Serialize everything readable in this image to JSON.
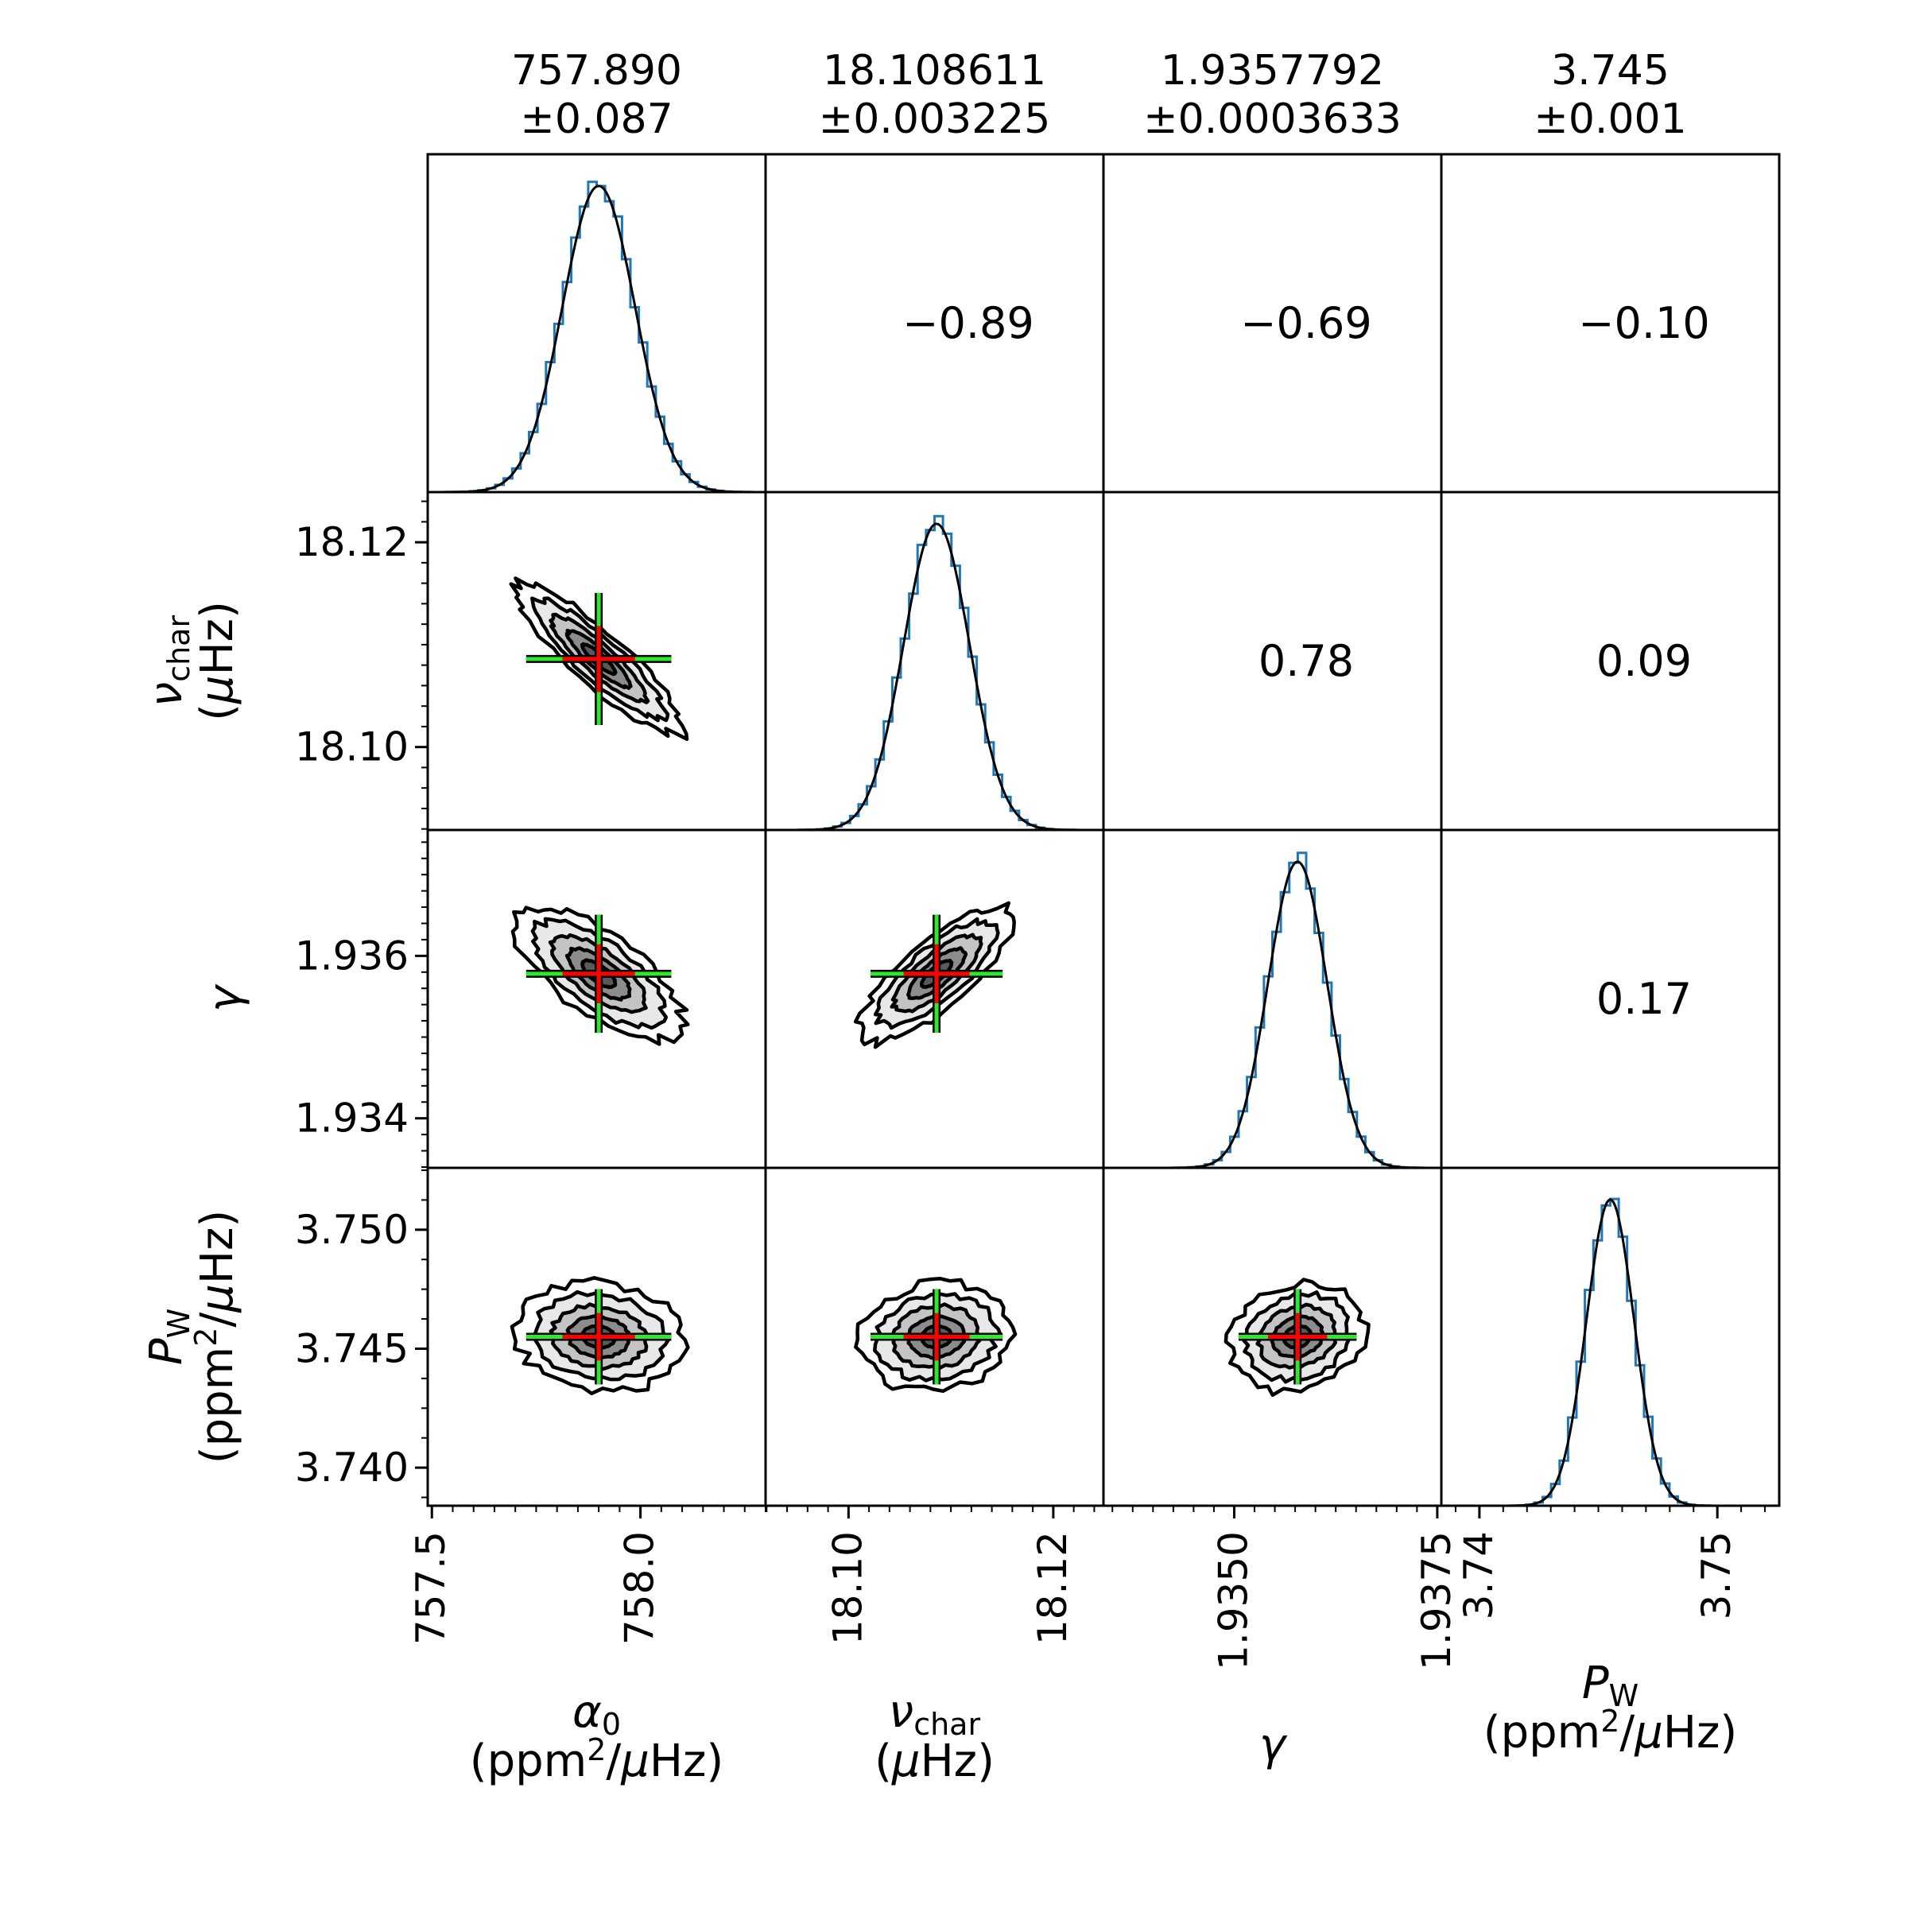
{
  "chart_data": {
    "type": "corner",
    "parameters": [
      {
        "key": "alpha0",
        "symbol": "α",
        "subscript": "0",
        "unit_parts": [
          "(ppm",
          "2",
          "/",
          "μ",
          "Hz)"
        ],
        "median": 757.9,
        "sigma": 0.087,
        "range": [
          757.49,
          758.3
        ],
        "x_ticks": [
          757.5,
          758.0
        ],
        "x_tick_labels": [
          "757.5",
          "758.0"
        ],
        "header_value": "757.890",
        "header_error": "±0.087"
      },
      {
        "key": "nu_char",
        "symbol": "ν",
        "subscript": "char",
        "unit_parts": [
          "(",
          "μ",
          "Hz)"
        ],
        "median": 18.1086,
        "sigma": 0.003225,
        "range": [
          18.0919,
          18.1249
        ],
        "x_ticks": [
          18.1,
          18.12
        ],
        "x_tick_labels": [
          "18.10",
          "18.12"
        ],
        "y_ticks": [
          18.1,
          18.12
        ],
        "y_tick_labels": [
          "18.10",
          "18.12"
        ],
        "header_value": "18.108611",
        "header_error": "±0.003225"
      },
      {
        "key": "gamma",
        "symbol": "γ",
        "subscript": "",
        "unit_parts": [],
        "median": 1.93578,
        "sigma": 0.0003633,
        "range": [
          1.93339,
          1.93755
        ],
        "x_ticks": [
          1.935,
          1.9375
        ],
        "x_tick_labels": [
          "1.9350",
          "1.9375"
        ],
        "y_ticks": [
          1.934,
          1.936
        ],
        "y_tick_labels": [
          "1.934",
          "1.936"
        ],
        "header_value": "1.9357792",
        "header_error": "±0.0003633"
      },
      {
        "key": "P_W",
        "symbol": "P",
        "subscript": "W",
        "unit_parts": [
          "(ppm",
          "2",
          "/",
          "μ",
          "Hz)"
        ],
        "median": 3.7455,
        "sigma": 0.001,
        "range": [
          3.7384,
          3.7526
        ],
        "x_ticks": [
          3.74,
          3.75
        ],
        "x_tick_labels": [
          "3.74",
          "3.75"
        ],
        "y_ticks": [
          3.74,
          3.745,
          3.75
        ],
        "y_tick_labels": [
          "3.740",
          "3.745",
          "3.750"
        ],
        "header_value": "3.745",
        "header_error": "±0.001"
      }
    ],
    "correlations": [
      {
        "row": 0,
        "col": 1,
        "value": -0.89,
        "label": "−0.89"
      },
      {
        "row": 0,
        "col": 2,
        "value": -0.69,
        "label": "−0.69"
      },
      {
        "row": 0,
        "col": 3,
        "value": -0.1,
        "label": "−0.10"
      },
      {
        "row": 1,
        "col": 2,
        "value": 0.78,
        "label": "0.78"
      },
      {
        "row": 1,
        "col": 3,
        "value": 0.09,
        "label": "0.09"
      },
      {
        "row": 2,
        "col": 3,
        "value": 0.17,
        "label": "0.17"
      }
    ],
    "contour_levels_sigma": [
      2.3,
      1.8,
      1.3,
      0.85,
      0.45
    ],
    "contour_fills": [
      "#ffffff",
      "#e8e8e8",
      "#c4c4c4",
      "#8c8c8c",
      "#595959",
      "#2b2b2b"
    ],
    "histogram_color": "#1f77b4",
    "fit_color": "#000000",
    "cross_red": "#ff0000",
    "cross_green": "#2ee82e"
  }
}
